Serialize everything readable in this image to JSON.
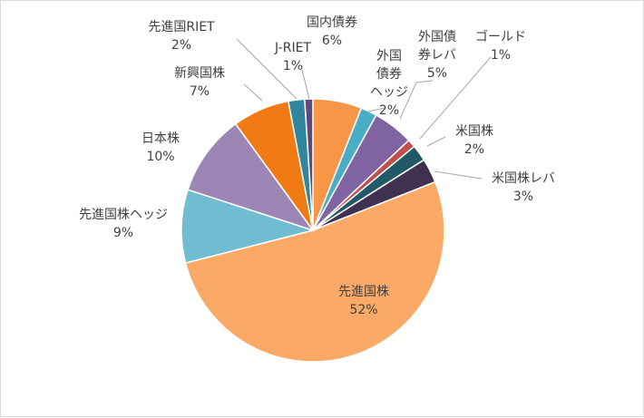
{
  "chart_data": {
    "type": "pie",
    "start": "top",
    "direction": "clockwise",
    "slices": [
      {
        "label": [
          "国内債券"
        ],
        "value": 6,
        "display": "6%",
        "color": "#F79646"
      },
      {
        "label": [
          "外国",
          "債券",
          "ヘッジ"
        ],
        "value": 2,
        "display": "2%",
        "color": "#4BACC6"
      },
      {
        "label": [
          "外国債",
          "券レバ"
        ],
        "value": 5,
        "display": "5%",
        "color": "#8064A2"
      },
      {
        "label": [
          "ゴールド"
        ],
        "value": 1,
        "display": "1%",
        "color": "#C0504D"
      },
      {
        "label": [
          "米国株"
        ],
        "value": 2,
        "display": "2%",
        "color": "#215968"
      },
      {
        "label": [
          "米国株レバ"
        ],
        "value": 3,
        "display": "3%",
        "color": "#403151"
      },
      {
        "label": [
          "先進国株"
        ],
        "value": 52,
        "display": "52%",
        "color": "#FAAA66"
      },
      {
        "label": [
          "先進国株ヘッジ"
        ],
        "value": 9,
        "display": "9%",
        "color": "#70BDD2"
      },
      {
        "label": [
          "日本株"
        ],
        "value": 10,
        "display": "10%",
        "color": "#9C86B6"
      },
      {
        "label": [
          "新興国株"
        ],
        "value": 7,
        "display": "7%",
        "color": "#F07A14"
      },
      {
        "label": [
          "先進国RIET"
        ],
        "value": 2,
        "display": "2%",
        "color": "#31859C"
      },
      {
        "label": [
          "J-RIET"
        ],
        "value": 1,
        "display": "1%",
        "color": "#5F497A"
      }
    ]
  }
}
